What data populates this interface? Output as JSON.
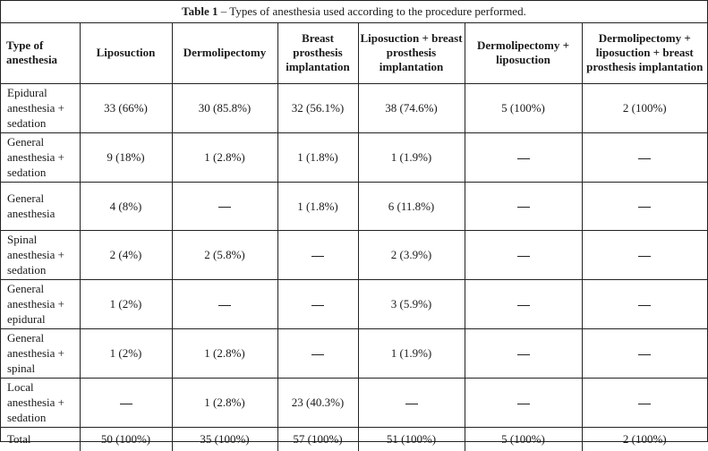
{
  "caption": {
    "label": "Table 1",
    "text": " – Types of anesthesia used according to the procedure performed."
  },
  "table": {
    "headers": [
      "Type of anesthesia",
      "Liposuction",
      "Dermolipectomy",
      "Breast prosthesis implantation",
      "Liposuction + breast prosthesis implantation",
      "Dermolipectomy + liposuction",
      "Dermolipectomy + liposuction + breast prosthesis implantation"
    ],
    "rows": [
      {
        "label": "Epidural anesthesia + sedation",
        "cells": [
          "33 (66%)",
          "30 (85.8%)",
          "32 (56.1%)",
          "38 (74.6%)",
          "5 (100%)",
          "2 (100%)"
        ]
      },
      {
        "label": "General anesthesia + sedation",
        "cells": [
          "9 (18%)",
          "1 (2.8%)",
          "1 (1.8%)",
          "1 (1.9%)",
          "—",
          "—"
        ]
      },
      {
        "label": "General anesthesia",
        "cells": [
          "4 (8%)",
          "—",
          "1 (1.8%)",
          "6 (11.8%)",
          "—",
          "—"
        ]
      },
      {
        "label": "Spinal anesthesia + sedation",
        "cells": [
          "2 (4%)",
          "2 (5.8%)",
          "—",
          "2 (3.9%)",
          "—",
          "—"
        ]
      },
      {
        "label": "General anesthesia + epidural",
        "cells": [
          "1 (2%)",
          "—",
          "—",
          "3 (5.9%)",
          "—",
          "—"
        ]
      },
      {
        "label": "General anesthesia + spinal",
        "cells": [
          "1 (2%)",
          "1 (2.8%)",
          "—",
          "1 (1.9%)",
          "—",
          "—"
        ]
      },
      {
        "label": "Local anesthesia + sedation",
        "cells": [
          "—",
          "1 (2.8%)",
          "23 (40.3%)",
          "—",
          "—",
          "—"
        ]
      },
      {
        "label": "Total",
        "cells": [
          "50 (100%)",
          "35 (100%)",
          "57 (100%)",
          "51 (100%)",
          "5 (100%)",
          "2 (100%)"
        ]
      }
    ]
  }
}
